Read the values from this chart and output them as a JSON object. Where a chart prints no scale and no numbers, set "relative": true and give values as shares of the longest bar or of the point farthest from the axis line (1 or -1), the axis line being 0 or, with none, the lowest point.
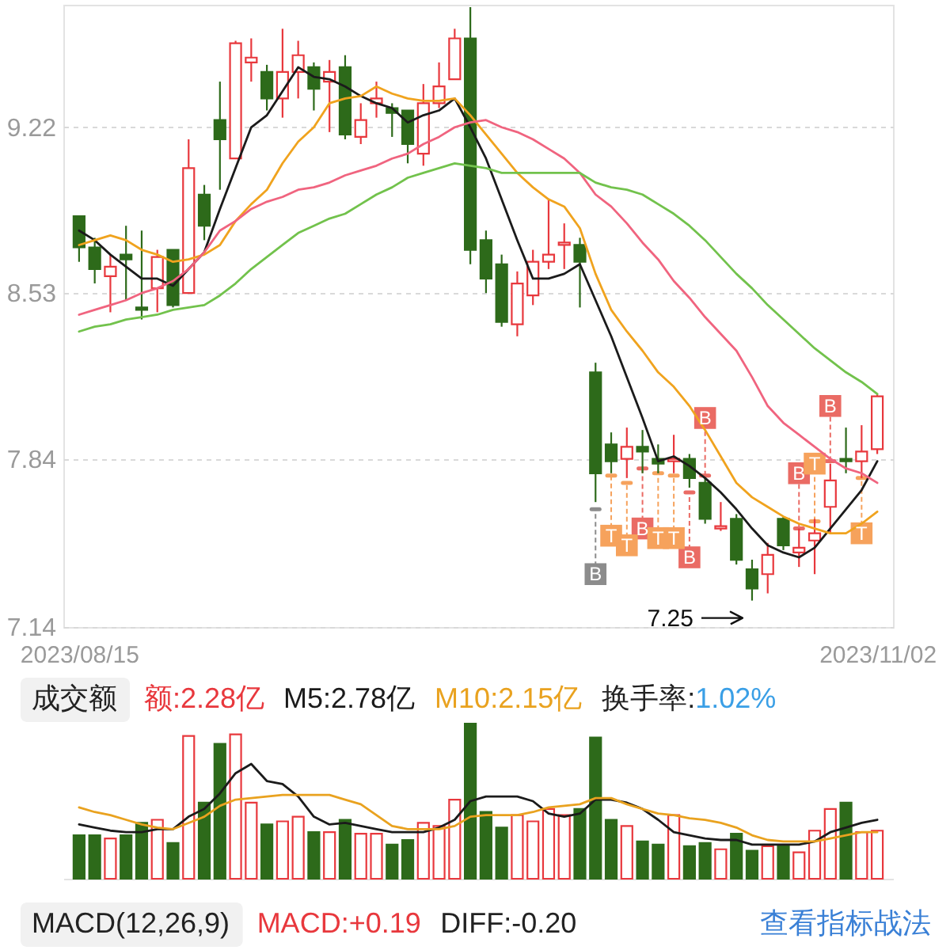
{
  "chart_data": [
    {
      "type": "candlestick",
      "categories": [
        "2023/08/15",
        null,
        null,
        null,
        null,
        null,
        null,
        null,
        null,
        null,
        null,
        null,
        null,
        null,
        null,
        null,
        null,
        null,
        null,
        null,
        null,
        null,
        null,
        null,
        null,
        null,
        null,
        null,
        null,
        null,
        null,
        null,
        null,
        null,
        null,
        null,
        null,
        null,
        null,
        null,
        null,
        null,
        null,
        null,
        null,
        null,
        null,
        null,
        null,
        null,
        null,
        "2023/11/02"
      ],
      "ohlc": [
        [
          8.85,
          8.85,
          8.66,
          8.72
        ],
        [
          8.72,
          8.76,
          8.57,
          8.63
        ],
        [
          8.6,
          8.69,
          8.45,
          8.64
        ],
        [
          8.69,
          8.81,
          8.5,
          8.67
        ],
        [
          8.47,
          8.79,
          8.42,
          8.46
        ],
        [
          8.55,
          8.71,
          8.45,
          8.68
        ],
        [
          8.71,
          8.71,
          8.47,
          8.48
        ],
        [
          8.53,
          9.17,
          8.53,
          9.05
        ],
        [
          8.94,
          8.98,
          8.75,
          8.81
        ],
        [
          9.25,
          9.41,
          8.96,
          9.17
        ],
        [
          9.09,
          9.58,
          9.09,
          9.57
        ],
        [
          9.49,
          9.59,
          9.41,
          9.51
        ],
        [
          9.45,
          9.48,
          9.29,
          9.34
        ],
        [
          9.34,
          9.63,
          9.26,
          9.45
        ],
        [
          9.45,
          9.58,
          9.34,
          9.52
        ],
        [
          9.47,
          9.49,
          9.29,
          9.38
        ],
        [
          9.41,
          9.5,
          9.2,
          9.45
        ],
        [
          9.47,
          9.52,
          9.17,
          9.19
        ],
        [
          9.18,
          9.32,
          9.15,
          9.25
        ],
        [
          9.32,
          9.41,
          9.26,
          9.34
        ],
        [
          9.3,
          9.32,
          9.18,
          9.28
        ],
        [
          9.29,
          9.29,
          9.07,
          9.15
        ],
        [
          9.11,
          9.4,
          9.06,
          9.32
        ],
        [
          9.32,
          9.49,
          9.3,
          9.39
        ],
        [
          9.42,
          9.63,
          9.42,
          9.59
        ],
        [
          9.59,
          9.72,
          8.65,
          8.71
        ],
        [
          8.75,
          8.79,
          8.53,
          8.59
        ],
        [
          8.65,
          8.69,
          8.39,
          8.41
        ],
        [
          8.4,
          8.62,
          8.35,
          8.57
        ],
        [
          8.52,
          8.71,
          8.48,
          8.66
        ],
        [
          8.66,
          8.92,
          8.63,
          8.69
        ],
        [
          8.73,
          8.82,
          8.63,
          8.74
        ],
        [
          8.73,
          8.76,
          8.47,
          8.66
        ],
        [
          8.2,
          8.24,
          7.66,
          7.78
        ],
        [
          7.9,
          7.95,
          7.78,
          7.83
        ],
        [
          7.84,
          7.97,
          7.76,
          7.89
        ],
        [
          7.89,
          7.96,
          7.78,
          7.87
        ],
        [
          7.84,
          7.9,
          7.78,
          7.82
        ],
        [
          7.83,
          7.94,
          7.78,
          7.84
        ],
        [
          7.84,
          7.86,
          7.72,
          7.76
        ],
        [
          7.74,
          7.76,
          7.57,
          7.59
        ],
        [
          7.55,
          7.66,
          7.54,
          7.56
        ],
        [
          7.59,
          7.61,
          7.4,
          7.42
        ],
        [
          7.38,
          7.42,
          7.25,
          7.3
        ],
        [
          7.36,
          7.49,
          7.28,
          7.44
        ],
        [
          7.59,
          7.6,
          7.46,
          7.48
        ],
        [
          7.45,
          7.55,
          7.39,
          7.47
        ],
        [
          7.5,
          7.59,
          7.36,
          7.53
        ],
        [
          7.64,
          7.82,
          7.53,
          7.75
        ],
        [
          7.84,
          7.97,
          7.78,
          7.83
        ],
        [
          7.83,
          7.98,
          7.76,
          7.87
        ],
        [
          7.88,
          8.11,
          7.86,
          8.1
        ]
      ],
      "colors": [
        "#2d6a1a",
        "#2d6a1a",
        "#e8383d",
        "#2d6a1a",
        "#2d6a1a",
        "#e8383d",
        "#2d6a1a",
        "#e8383d",
        "#2d6a1a",
        "#2d6a1a",
        "#e8383d",
        "#e8383d",
        "#2d6a1a",
        "#e8383d",
        "#e8383d",
        "#2d6a1a",
        "#e8383d",
        "#2d6a1a",
        "#e8383d",
        "#e8383d",
        "#2d6a1a",
        "#2d6a1a",
        "#e8383d",
        "#e8383d",
        "#e8383d",
        "#2d6a1a",
        "#2d6a1a",
        "#2d6a1a",
        "#e8383d",
        "#e8383d",
        "#e8383d",
        "#e8383d",
        "#2d6a1a",
        "#2d6a1a",
        "#2d6a1a",
        "#e8383d",
        "#2d6a1a",
        "#2d6a1a",
        "#e8383d",
        "#2d6a1a",
        "#2d6a1a",
        "#e8383d",
        "#2d6a1a",
        "#2d6a1a",
        "#e8383d",
        "#2d6a1a",
        "#e8383d",
        "#e8383d",
        "#e8383d",
        "#2d6a1a",
        "#e8383d",
        "#e8383d"
      ],
      "ylim": [
        7.14,
        9.73
      ],
      "yticks": [
        7.14,
        7.84,
        8.53,
        9.22
      ],
      "grid": "y",
      "series": [
        {
          "type": "line",
          "color": "#1b1b1b",
          "values": [
            8.79,
            8.75,
            8.69,
            8.64,
            8.59,
            8.59,
            8.56,
            8.63,
            8.7,
            8.88,
            9.05,
            9.22,
            9.27,
            9.37,
            9.47,
            9.43,
            9.42,
            9.39,
            9.35,
            9.32,
            9.3,
            9.24,
            9.27,
            9.29,
            9.34,
            9.22,
            9.09,
            8.92,
            8.75,
            8.59,
            8.59,
            8.61,
            8.65,
            8.5,
            8.35,
            8.18,
            8.01,
            7.83,
            7.85,
            7.81,
            7.76,
            7.7,
            7.63,
            7.55,
            7.48,
            7.45,
            7.43,
            7.47,
            7.55,
            7.63,
            7.71,
            7.83
          ]
        },
        {
          "type": "line",
          "color": "#f0a31e",
          "values": [
            8.73,
            8.75,
            8.77,
            8.75,
            8.71,
            8.69,
            8.66,
            8.67,
            8.69,
            8.73,
            8.83,
            8.9,
            8.96,
            9.07,
            9.16,
            9.22,
            9.32,
            9.34,
            9.35,
            9.39,
            9.36,
            9.34,
            9.33,
            9.33,
            9.34,
            9.27,
            9.19,
            9.11,
            9.03,
            8.97,
            8.92,
            8.89,
            8.8,
            8.61,
            8.46,
            8.37,
            8.29,
            8.2,
            8.14,
            8.06,
            7.96,
            7.85,
            7.74,
            7.68,
            7.64,
            7.6,
            7.57,
            7.55,
            7.53,
            7.53,
            7.57,
            7.62
          ]
        },
        {
          "type": "line",
          "color": "#f0647f",
          "values": [
            8.44,
            8.46,
            8.48,
            8.5,
            8.53,
            8.55,
            8.58,
            8.63,
            8.7,
            8.79,
            8.83,
            8.88,
            8.91,
            8.93,
            8.96,
            8.97,
            8.99,
            9.02,
            9.04,
            9.06,
            9.09,
            9.11,
            9.15,
            9.18,
            9.22,
            9.24,
            9.25,
            9.22,
            9.2,
            9.17,
            9.13,
            9.09,
            9.03,
            8.94,
            8.89,
            8.82,
            8.74,
            8.67,
            8.58,
            8.51,
            8.43,
            8.36,
            8.29,
            8.18,
            8.06,
            7.99,
            7.94,
            7.89,
            7.84,
            7.8,
            7.78,
            7.74
          ]
        },
        {
          "type": "line",
          "color": "#72c24c",
          "values": [
            8.37,
            8.39,
            8.4,
            8.42,
            8.43,
            8.44,
            8.46,
            8.47,
            8.48,
            8.52,
            8.57,
            8.63,
            8.68,
            8.73,
            8.78,
            8.81,
            8.84,
            8.86,
            8.9,
            8.94,
            8.97,
            9.01,
            9.03,
            9.05,
            9.07,
            9.06,
            9.05,
            9.03,
            9.03,
            9.03,
            9.03,
            9.03,
            9.03,
            8.99,
            8.97,
            8.96,
            8.94,
            8.9,
            8.86,
            8.81,
            8.75,
            8.68,
            8.61,
            8.55,
            8.48,
            8.42,
            8.36,
            8.3,
            8.25,
            8.2,
            8.16,
            8.11
          ]
        },
        {
          "type": "scatter",
          "marker": "square",
          "color": "#8c8c8c",
          "values": [
            null,
            null,
            null,
            null,
            null,
            null,
            null,
            null,
            null,
            null,
            null,
            null,
            null,
            null,
            null,
            null,
            null,
            null,
            null,
            null,
            null,
            null,
            null,
            null,
            null,
            null,
            null,
            null,
            null,
            null,
            null,
            null,
            null,
            7.36,
            null,
            null,
            null,
            null,
            null,
            null,
            null,
            null,
            null,
            null,
            null,
            null,
            null,
            null,
            null,
            null,
            null,
            null
          ],
          "value_labels": [
            null,
            null,
            null,
            null,
            null,
            null,
            null,
            null,
            null,
            null,
            null,
            null,
            null,
            null,
            null,
            null,
            null,
            null,
            null,
            null,
            null,
            null,
            null,
            null,
            null,
            null,
            null,
            null,
            null,
            null,
            null,
            null,
            null,
            "B",
            null,
            null,
            null,
            null,
            null,
            null,
            null,
            null,
            null,
            null,
            null,
            null,
            null,
            null,
            null,
            null,
            null,
            null
          ],
          "errors": [
            null,
            null,
            null,
            null,
            null,
            null,
            null,
            null,
            null,
            null,
            null,
            null,
            null,
            null,
            null,
            null,
            null,
            null,
            null,
            null,
            null,
            null,
            null,
            null,
            null,
            null,
            null,
            null,
            null,
            null,
            null,
            null,
            null,
            [
              7.36,
              7.63
            ],
            null,
            null,
            null,
            null,
            null,
            null,
            null,
            null,
            null,
            null,
            null,
            null,
            null,
            null,
            null,
            null,
            null,
            null
          ]
        },
        {
          "type": "scatter",
          "marker": "square",
          "color": "#ea6b64",
          "values": [
            null,
            null,
            null,
            null,
            null,
            null,
            null,
            null,
            null,
            null,
            null,
            null,
            null,
            null,
            null,
            null,
            null,
            null,
            null,
            null,
            null,
            null,
            null,
            null,
            null,
            null,
            null,
            null,
            null,
            null,
            null,
            null,
            null,
            null,
            null,
            null,
            7.55,
            null,
            null,
            7.43,
            8.01,
            null,
            null,
            null,
            null,
            null,
            7.78,
            null,
            8.06,
            null,
            null,
            null
          ],
          "value_labels": [
            null,
            null,
            null,
            null,
            null,
            null,
            null,
            null,
            null,
            null,
            null,
            null,
            null,
            null,
            null,
            null,
            null,
            null,
            null,
            null,
            null,
            null,
            null,
            null,
            null,
            null,
            null,
            null,
            null,
            null,
            null,
            null,
            null,
            null,
            null,
            null,
            "B",
            null,
            null,
            "B",
            "B",
            null,
            null,
            null,
            null,
            null,
            "B",
            null,
            "B",
            null,
            null,
            null
          ],
          "errors": [
            null,
            null,
            null,
            null,
            null,
            null,
            null,
            null,
            null,
            null,
            null,
            null,
            null,
            null,
            null,
            null,
            null,
            null,
            null,
            null,
            null,
            null,
            null,
            null,
            null,
            null,
            null,
            null,
            null,
            null,
            null,
            null,
            null,
            null,
            null,
            null,
            [
              7.55,
              7.8
            ],
            null,
            null,
            [
              7.43,
              7.7
            ],
            [
              7.77,
              8.01
            ],
            null,
            null,
            null,
            null,
            null,
            [
              7.55,
              7.78
            ],
            null,
            [
              7.83,
              8.06
            ],
            null,
            null,
            null
          ]
        },
        {
          "type": "scatter",
          "marker": "square",
          "color": "#f6a25c",
          "values": [
            null,
            null,
            null,
            null,
            null,
            null,
            null,
            null,
            null,
            null,
            null,
            null,
            null,
            null,
            null,
            null,
            null,
            null,
            null,
            null,
            null,
            null,
            null,
            null,
            null,
            null,
            null,
            null,
            null,
            null,
            null,
            null,
            null,
            null,
            7.52,
            7.48,
            null,
            7.51,
            7.51,
            null,
            null,
            null,
            null,
            null,
            null,
            null,
            null,
            7.82,
            null,
            null,
            7.53,
            null
          ],
          "value_labels": [
            null,
            null,
            null,
            null,
            null,
            null,
            null,
            null,
            null,
            null,
            null,
            null,
            null,
            null,
            null,
            null,
            null,
            null,
            null,
            null,
            null,
            null,
            null,
            null,
            null,
            null,
            null,
            null,
            null,
            null,
            null,
            null,
            null,
            null,
            "T",
            "T",
            null,
            "T",
            "T",
            null,
            null,
            null,
            null,
            null,
            null,
            null,
            null,
            "T",
            null,
            null,
            "T",
            null
          ],
          "errors": [
            null,
            null,
            null,
            null,
            null,
            null,
            null,
            null,
            null,
            null,
            null,
            null,
            null,
            null,
            null,
            null,
            null,
            null,
            null,
            null,
            null,
            null,
            null,
            null,
            null,
            null,
            null,
            null,
            null,
            null,
            null,
            null,
            null,
            null,
            [
              7.52,
              7.77
            ],
            [
              7.48,
              7.74
            ],
            null,
            [
              7.51,
              7.78
            ],
            [
              7.51,
              7.77
            ],
            null,
            null,
            null,
            null,
            null,
            null,
            null,
            null,
            [
              7.58,
              7.82
            ],
            null,
            null,
            [
              7.53,
              7.76
            ],
            null
          ]
        }
      ],
      "annotations": [
        "7.25"
      ]
    },
    {
      "type": "bar",
      "relative": true,
      "title": "成交额",
      "categories": [
        null,
        null,
        null,
        null,
        null,
        null,
        null,
        null,
        null,
        null,
        null,
        null,
        null,
        null,
        null,
        null,
        null,
        null,
        null,
        null,
        null,
        null,
        null,
        null,
        null,
        null,
        null,
        null,
        null,
        null,
        null,
        null,
        null,
        null,
        null,
        null,
        null,
        null,
        null,
        null,
        null,
        null,
        null,
        null,
        null,
        null,
        null,
        null,
        null,
        null,
        null,
        null
      ],
      "series": [
        {
          "name": "额:2.28亿",
          "color": "#e8383d",
          "colors": [
            "#2d6a1a",
            "#2d6a1a",
            "#e8383d",
            "#2d6a1a",
            "#2d6a1a",
            "#e8383d",
            "#2d6a1a",
            "#e8383d",
            "#2d6a1a",
            "#2d6a1a",
            "#e8383d",
            "#e8383d",
            "#2d6a1a",
            "#e8383d",
            "#e8383d",
            "#2d6a1a",
            "#e8383d",
            "#2d6a1a",
            "#e8383d",
            "#e8383d",
            "#2d6a1a",
            "#2d6a1a",
            "#e8383d",
            "#e8383d",
            "#e8383d",
            "#2d6a1a",
            "#2d6a1a",
            "#2d6a1a",
            "#e8383d",
            "#e8383d",
            "#e8383d",
            "#e8383d",
            "#2d6a1a",
            "#2d6a1a",
            "#2d6a1a",
            "#e8383d",
            "#2d6a1a",
            "#2d6a1a",
            "#e8383d",
            "#2d6a1a",
            "#2d6a1a",
            "#e8383d",
            "#2d6a1a",
            "#2d6a1a",
            "#e8383d",
            "#2d6a1a",
            "#e8383d",
            "#e8383d",
            "#e8383d",
            "#2d6a1a",
            "#e8383d",
            "#e8383d"
          ],
          "values": [
            0.28,
            0.28,
            0.26,
            0.28,
            0.36,
            0.38,
            0.23,
            0.92,
            0.49,
            0.87,
            0.93,
            0.49,
            0.35,
            0.37,
            0.4,
            0.3,
            0.3,
            0.38,
            0.29,
            0.29,
            0.22,
            0.25,
            0.36,
            0.34,
            0.51,
            1,
            0.43,
            0.33,
            0.41,
            0.37,
            0.45,
            0.41,
            0.45,
            0.91,
            0.38,
            0.34,
            0.24,
            0.22,
            0.41,
            0.21,
            0.23,
            0.19,
            0.29,
            0.18,
            0.21,
            0.21,
            0.17,
            0.31,
            0.45,
            0.49,
            0.3,
            0.31
          ]
        },
        {
          "type": "line",
          "name": "M5:2.78亿",
          "color": "#1b1b1b",
          "values": [
            0.35,
            0.33,
            0.31,
            0.3,
            0.3,
            0.32,
            0.32,
            0.4,
            0.45,
            0.55,
            0.68,
            0.74,
            0.63,
            0.61,
            0.53,
            0.4,
            0.35,
            0.36,
            0.34,
            0.32,
            0.3,
            0.3,
            0.3,
            0.33,
            0.38,
            0.5,
            0.53,
            0.53,
            0.53,
            0.5,
            0.42,
            0.4,
            0.42,
            0.51,
            0.51,
            0.49,
            0.45,
            0.38,
            0.3,
            0.28,
            0.26,
            0.25,
            0.25,
            0.22,
            0.22,
            0.22,
            0.22,
            0.24,
            0.3,
            0.33,
            0.36,
            0.38
          ]
        },
        {
          "type": "line",
          "name": "M10:2.15亿",
          "color": "#e9a21f",
          "values": [
            0.46,
            0.43,
            0.41,
            0.38,
            0.35,
            0.33,
            0.32,
            0.36,
            0.4,
            0.47,
            0.51,
            0.52,
            0.53,
            0.54,
            0.54,
            0.54,
            0.54,
            0.51,
            0.48,
            0.41,
            0.34,
            0.32,
            0.32,
            0.32,
            0.34,
            0.4,
            0.41,
            0.41,
            0.41,
            0.43,
            0.46,
            0.47,
            0.48,
            0.52,
            0.52,
            0.48,
            0.45,
            0.42,
            0.41,
            0.39,
            0.38,
            0.36,
            0.33,
            0.28,
            0.25,
            0.24,
            0.24,
            0.24,
            0.26,
            0.28,
            0.3,
            0.3
          ]
        }
      ],
      "annotations": [
        "换手率:1.02%"
      ]
    },
    {
      "type": "other",
      "title": "MACD(12,26,9)",
      "annotations": [
        "MACD:+0.19",
        "DIFF:-0.20",
        "查看指标战法"
      ]
    }
  ]
}
